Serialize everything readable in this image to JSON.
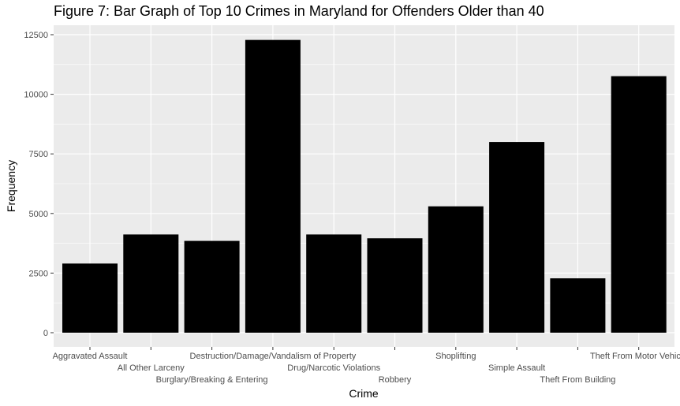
{
  "chart_data": {
    "type": "bar",
    "title": "Figure 7: Bar Graph of Top 10 Crimes in Maryland for Offenders Older than 40",
    "xlabel": "Crime",
    "ylabel": "Frequency",
    "categories": [
      "Aggravated Assault",
      "All Other Larceny",
      "Burglary/Breaking & Entering",
      "Destruction/Damage/Vandalism of Property",
      "Drug/Narcotic Violations",
      "Robbery",
      "Shoplifting",
      "Simple Assault",
      "Theft From Building",
      "Theft From Motor Vehicle"
    ],
    "values": [
      2900,
      4120,
      3850,
      12280,
      4120,
      3960,
      5300,
      8000,
      2280,
      10760
    ],
    "ylim": [
      0,
      13000
    ],
    "yticks": [
      0,
      2500,
      5000,
      7500,
      10000,
      12500
    ],
    "ytick_labels": [
      "0",
      "2500",
      "5000",
      "7500",
      "10000",
      "12500"
    ],
    "grid": true,
    "bar_color": "#000000",
    "panel_color": "#ebebeb",
    "grid_color": "#ffffff"
  }
}
